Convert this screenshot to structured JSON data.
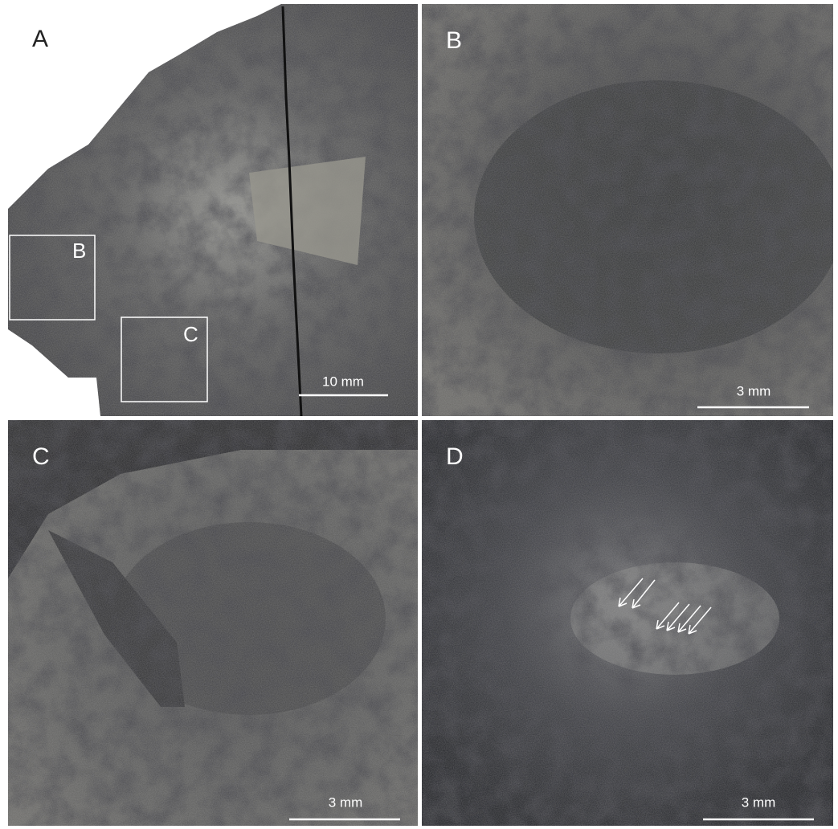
{
  "panels": [
    {
      "label": "A",
      "scale_bar": "10 mm",
      "insets": [
        "B",
        "C"
      ]
    },
    {
      "label": "B",
      "scale_bar": "3 mm"
    },
    {
      "label": "C",
      "scale_bar": "3 mm"
    },
    {
      "label": "D",
      "scale_bar": "3 mm"
    }
  ]
}
